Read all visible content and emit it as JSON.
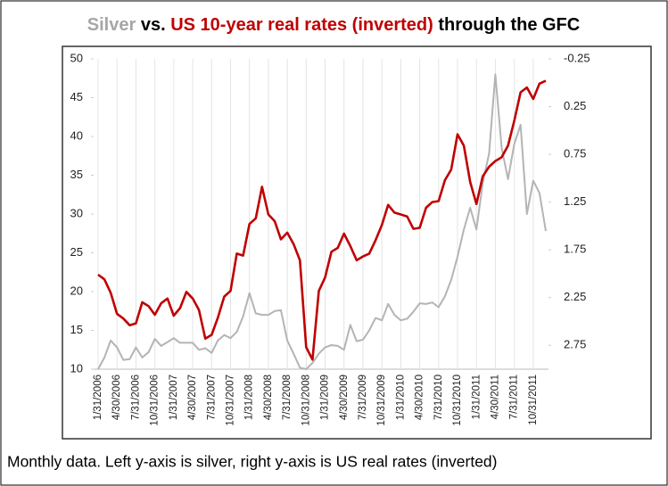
{
  "chart_data": {
    "type": "line",
    "title": [
      "Silver",
      "vs.",
      "US 10-year real rates (inverted)",
      "through the GFC"
    ],
    "title_colors": [
      "#a6a6a6",
      "#000000",
      "#c00000",
      "#000000"
    ],
    "caption": "Monthly data. Left y-axis is silver, right y-axis is US real rates (inverted)",
    "categories": [
      "1/31/2006",
      null,
      null,
      "4/30/2006",
      null,
      null,
      "7/31/2006",
      null,
      null,
      "10/31/2006",
      null,
      null,
      "1/31/2007",
      null,
      null,
      "4/30/2007",
      null,
      null,
      "7/31/2007",
      null,
      null,
      "10/31/2007",
      null,
      null,
      "1/31/2008",
      null,
      null,
      "4/30/2008",
      null,
      null,
      "7/31/2008",
      null,
      null,
      "10/31/2008",
      null,
      null,
      "1/31/2009",
      null,
      null,
      "4/30/2009",
      null,
      null,
      "7/31/2009",
      null,
      null,
      "10/31/2009",
      null,
      null,
      "1/31/2010",
      null,
      null,
      "4/30/2010",
      null,
      null,
      "7/31/2010",
      null,
      null,
      "10/31/2010",
      null,
      null,
      "1/31/2011",
      null,
      null,
      "4/30/2011",
      null,
      null,
      "7/31/2011",
      null,
      null,
      "10/31/2011",
      null,
      null
    ],
    "series": [
      {
        "name": "Silver",
        "color": "#b4b4b4",
        "axis": "y",
        "values": [
          10,
          11.5,
          13.7,
          12.8,
          11.2,
          11.3,
          12.8,
          11.5,
          12.2,
          13.9,
          13,
          13.5,
          14,
          13.4,
          13.4,
          13.4,
          12.5,
          12.7,
          12.1,
          13.7,
          14.4,
          14,
          14.8,
          16.8,
          19.8,
          17.2,
          17,
          17,
          17.5,
          17.6,
          13.7,
          12,
          10.2,
          10,
          10.8,
          12,
          12.8,
          13.1,
          13,
          12.5,
          15.7,
          13.6,
          13.8,
          15,
          16.6,
          16.3,
          18.4,
          17,
          16.3,
          16.5,
          17.4,
          18.5,
          18.4,
          18.6,
          18,
          19.4,
          21.5,
          24.5,
          28,
          30.8,
          28,
          34,
          37.8,
          48,
          38.5,
          34.5,
          39,
          41.5,
          30,
          34.3,
          32.7,
          27.8
        ]
      },
      {
        "name": "US 10-year real rates (inverted)",
        "color": "#c00000",
        "axis": "y2",
        "values": [
          2.01,
          2.06,
          2.2,
          2.42,
          2.47,
          2.54,
          2.52,
          2.3,
          2.34,
          2.43,
          2.31,
          2.26,
          2.44,
          2.36,
          2.19,
          2.26,
          2.38,
          2.68,
          2.64,
          2.46,
          2.24,
          2.18,
          1.79,
          1.81,
          1.48,
          1.42,
          1.09,
          1.38,
          1.45,
          1.64,
          1.57,
          1.69,
          1.86,
          2.77,
          2.9,
          2.18,
          2.04,
          1.77,
          1.73,
          1.58,
          1.71,
          1.86,
          1.82,
          1.79,
          1.65,
          1.49,
          1.28,
          1.36,
          1.38,
          1.4,
          1.53,
          1.52,
          1.31,
          1.25,
          1.24,
          1.02,
          0.91,
          0.54,
          0.66,
          1.04,
          1.27,
          0.98,
          0.88,
          0.82,
          0.78,
          0.66,
          0.4,
          0.1,
          0.05,
          0.17,
          0.01,
          -0.02
        ]
      }
    ],
    "ylim": [
      10,
      50
    ],
    "yticks": [
      10,
      15,
      20,
      25,
      30,
      35,
      40,
      45,
      50
    ],
    "y2lim": [
      3.0,
      -0.25
    ],
    "y2ticks": [
      -0.25,
      0.25,
      0.75,
      1.25,
      1.75,
      2.25,
      2.75
    ],
    "xgrid": true
  }
}
